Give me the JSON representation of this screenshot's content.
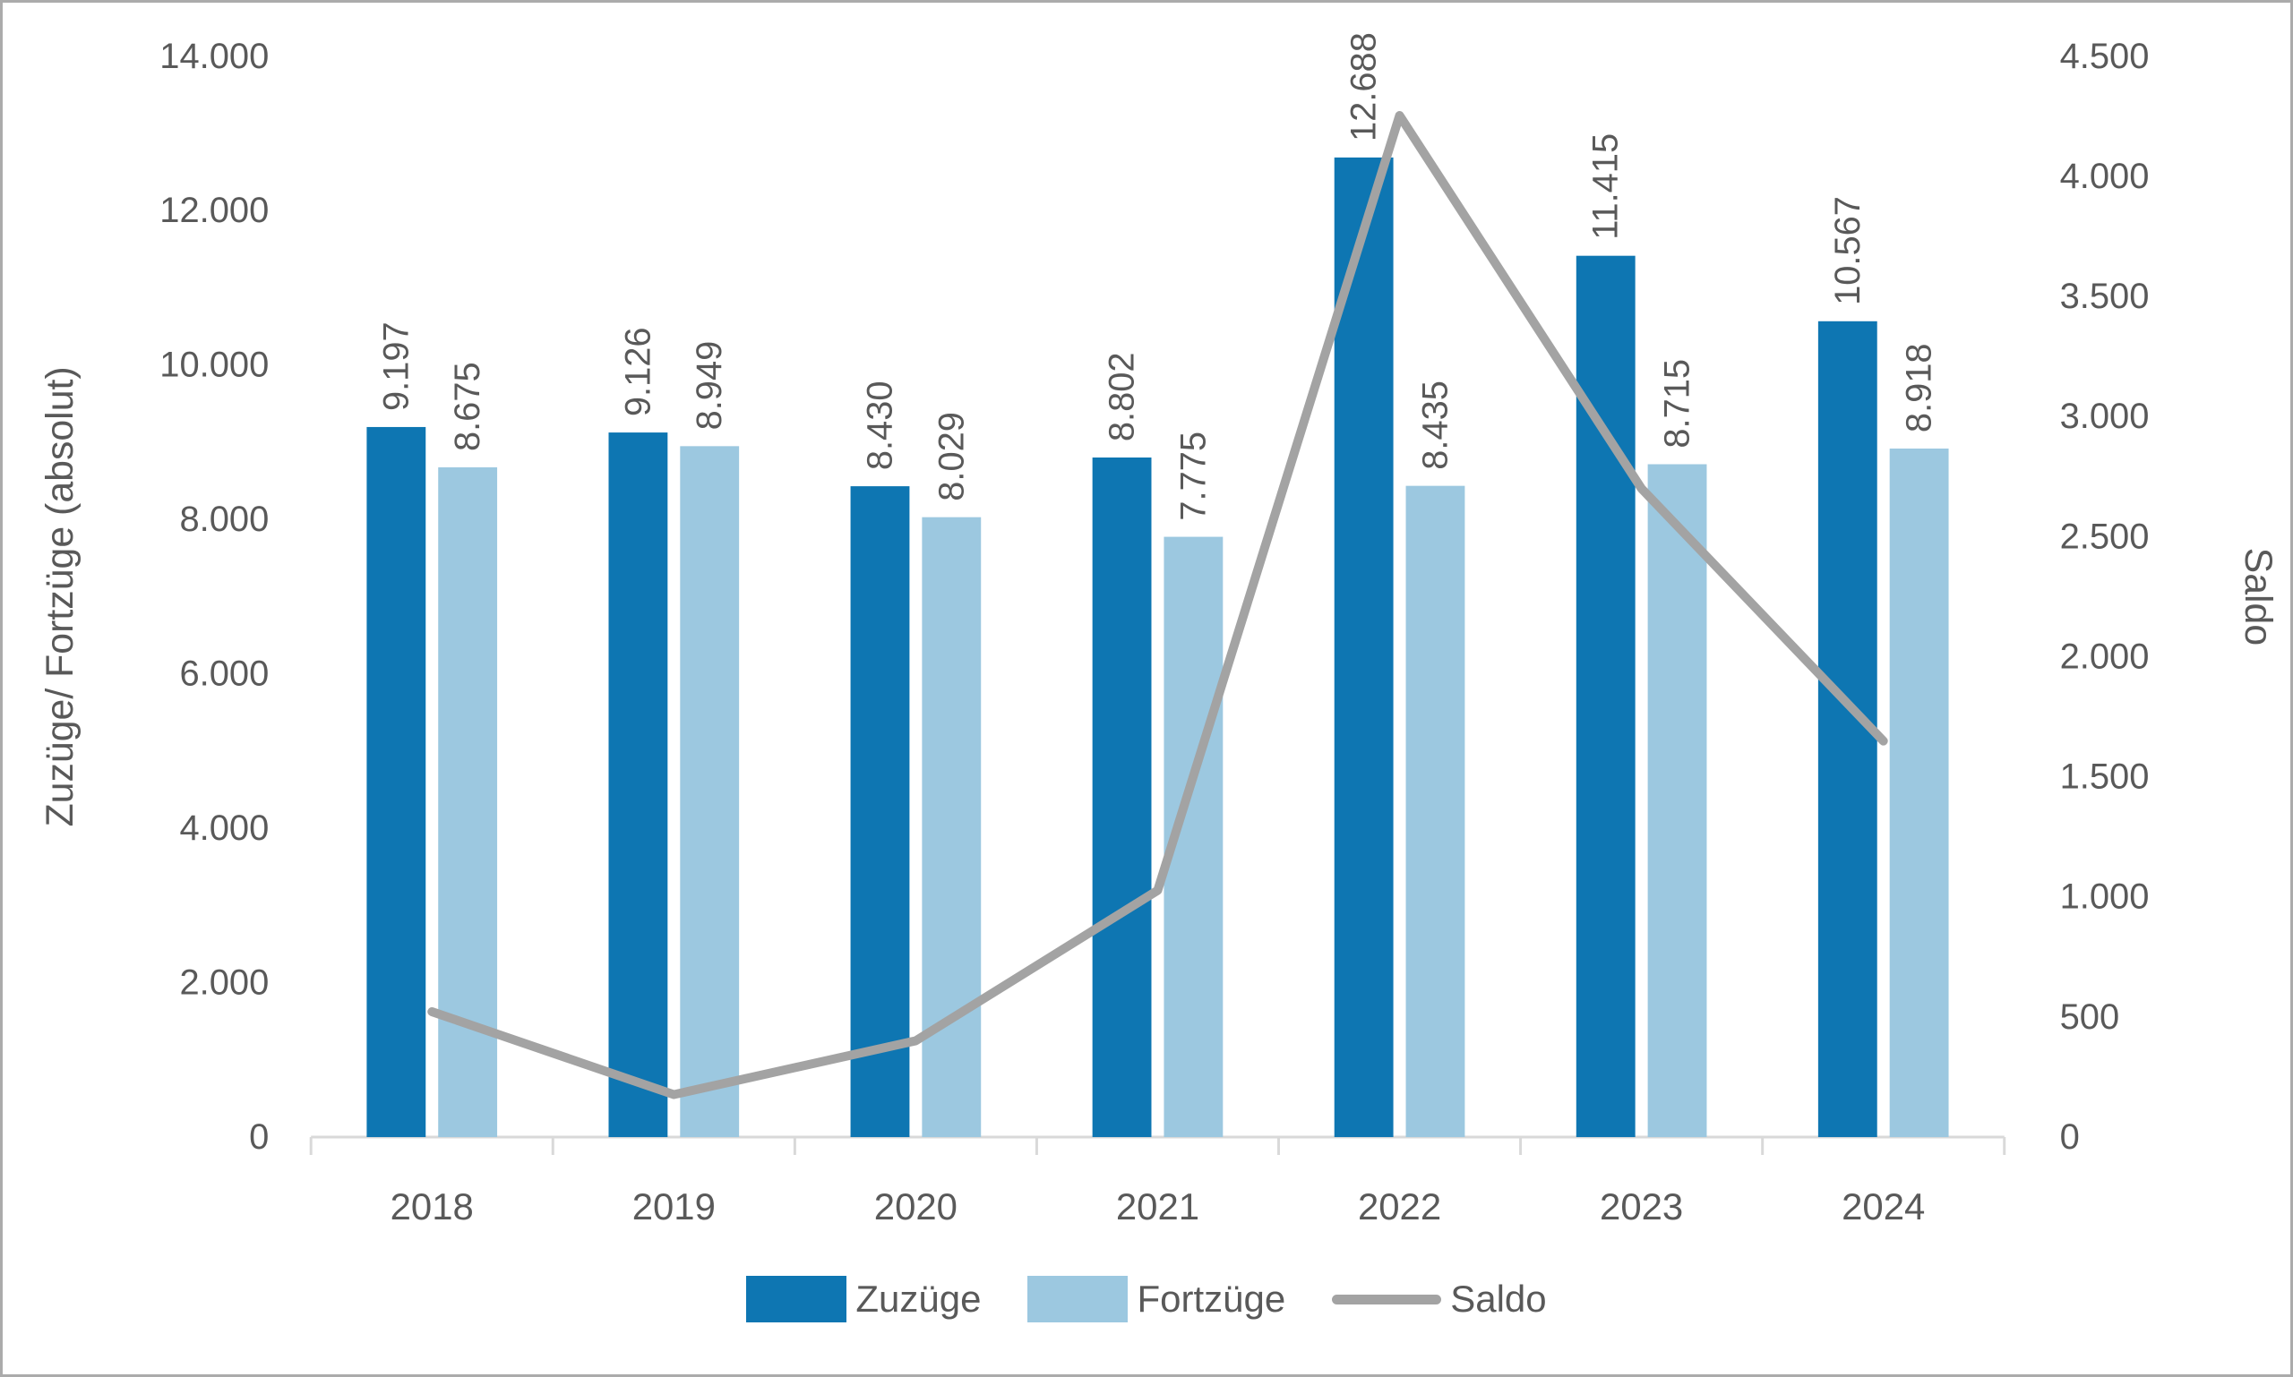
{
  "chart_data": {
    "type": "bar+line combo",
    "categories": [
      "2018",
      "2019",
      "2020",
      "2021",
      "2022",
      "2023",
      "2024"
    ],
    "series": [
      {
        "name": "Zuzüge",
        "type": "bar",
        "axis": "left",
        "color": "#0e76b2",
        "values": [
          9197,
          9126,
          8430,
          8802,
          12688,
          11415,
          10567
        ],
        "labels": [
          "9.197",
          "9.126",
          "8.430",
          "8.802",
          "12.688",
          "11.415",
          "10.567"
        ]
      },
      {
        "name": "Fortzüge",
        "type": "bar",
        "axis": "left",
        "color": "#9cc8e0",
        "values": [
          8675,
          8949,
          8029,
          7775,
          8435,
          8715,
          8918
        ],
        "labels": [
          "8.675",
          "8.949",
          "8.029",
          "7.775",
          "8.435",
          "8.715",
          "8.918"
        ]
      },
      {
        "name": "Saldo",
        "type": "line",
        "axis": "right",
        "color": "#a3a3a3",
        "values": [
          522,
          177,
          401,
          1027,
          4253,
          2700,
          1649
        ]
      }
    ],
    "left_axis": {
      "title": "Zuzüge/ Fortzüge (absolut)",
      "min": 0,
      "max": 14000,
      "step": 2000,
      "tick_labels": [
        "0",
        "2.000",
        "4.000",
        "6.000",
        "8.000",
        "10.000",
        "12.000",
        "14.000"
      ]
    },
    "right_axis": {
      "title": "Saldo",
      "min": 0,
      "max": 4500,
      "step": 500,
      "tick_labels": [
        "0",
        "500",
        "1.000",
        "1.500",
        "2.000",
        "2.500",
        "3.000",
        "3.500",
        "4.000",
        "4.500"
      ]
    },
    "legend": [
      "Zuzüge",
      "Fortzüge",
      "Saldo"
    ],
    "grid": "off",
    "legend_position": "bottom-center"
  },
  "colors": {
    "bar_dark_blue": "#0e76b2",
    "bar_light_blue": "#9cc8e0",
    "line_gray": "#a3a3a3",
    "axis_line": "#d9d9d9",
    "tick_text": "#595959",
    "data_label_text": "#404040",
    "frame_border": "#ababab"
  }
}
